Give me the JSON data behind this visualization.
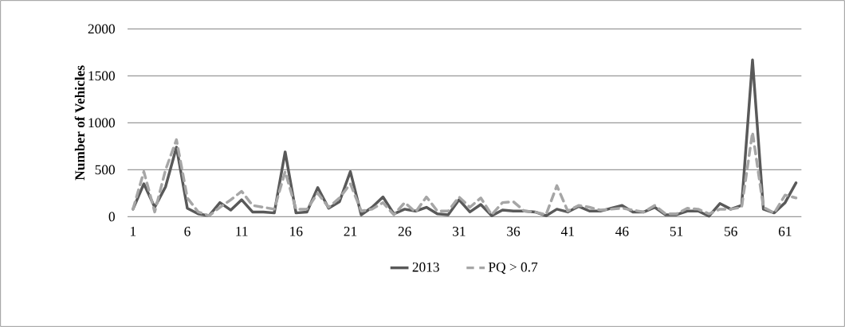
{
  "chart_data": {
    "type": "line",
    "ylabel": "Number of Vehicles",
    "categories": [
      "1",
      null,
      null,
      null,
      null,
      "6",
      null,
      null,
      null,
      null,
      "11",
      null,
      null,
      null,
      null,
      "16",
      null,
      null,
      null,
      null,
      "21",
      null,
      null,
      null,
      null,
      "26",
      null,
      null,
      null,
      null,
      "31",
      null,
      null,
      null,
      null,
      "36",
      null,
      null,
      null,
      null,
      "41",
      null,
      null,
      null,
      null,
      "46",
      null,
      null,
      null,
      null,
      "51",
      null,
      null,
      null,
      null,
      "56",
      null,
      null,
      null,
      null,
      "61",
      null
    ],
    "series": [
      {
        "name": "2013",
        "color": "#595959",
        "line_style": "solid",
        "values": [
          80,
          350,
          100,
          320,
          740,
          90,
          30,
          10,
          150,
          70,
          180,
          50,
          50,
          40,
          690,
          40,
          50,
          310,
          90,
          160,
          480,
          20,
          100,
          210,
          30,
          80,
          60,
          100,
          30,
          20,
          180,
          50,
          130,
          10,
          70,
          60,
          60,
          50,
          10,
          80,
          50,
          110,
          60,
          60,
          90,
          120,
          50,
          50,
          100,
          20,
          20,
          60,
          60,
          5,
          140,
          80,
          120,
          1670,
          80,
          40,
          150,
          360
        ]
      },
      {
        "name": "PQ > 0.7",
        "color": "#a6a6a6",
        "line_style": "dashed",
        "values": [
          80,
          480,
          50,
          500,
          820,
          200,
          50,
          10,
          100,
          180,
          270,
          120,
          100,
          80,
          480,
          80,
          80,
          250,
          100,
          200,
          350,
          60,
          80,
          150,
          20,
          150,
          50,
          210,
          60,
          60,
          210,
          100,
          200,
          20,
          150,
          160,
          60,
          50,
          20,
          330,
          60,
          120,
          100,
          70,
          80,
          90,
          70,
          50,
          120,
          30,
          30,
          90,
          80,
          30,
          80,
          80,
          100,
          900,
          100,
          40,
          230,
          200
        ]
      }
    ],
    "ylim": [
      0,
      2000
    ],
    "yticks": [
      0,
      500,
      1000,
      1500,
      2000
    ],
    "grid": "y",
    "legend": "bottom"
  }
}
